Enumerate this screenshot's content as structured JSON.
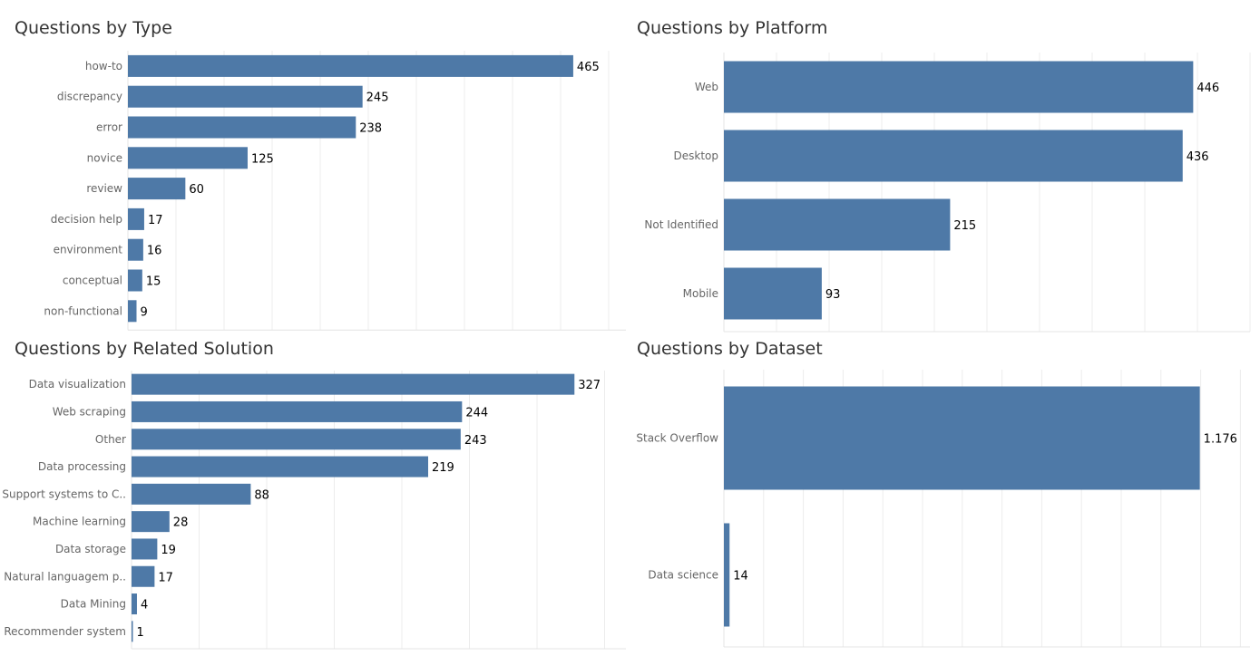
{
  "colors": {
    "bar": "#4e79a7"
  },
  "chart_data": [
    {
      "type": "bar",
      "orientation": "horizontal",
      "title": "Questions by Type",
      "categories": [
        "how-to",
        "discrepancy",
        "error",
        "novice",
        "review",
        "decision help",
        "environment",
        "conceptual",
        "non-functional"
      ],
      "values": [
        465,
        245,
        238,
        125,
        60,
        17,
        16,
        15,
        9
      ],
      "value_labels": [
        "465",
        "245",
        "238",
        "125",
        "60",
        "17",
        "16",
        "15",
        "9"
      ],
      "xlim": [
        0,
        520
      ],
      "grid": true
    },
    {
      "type": "bar",
      "orientation": "horizontal",
      "title": "Questions by Platform",
      "categories": [
        "Web",
        "Desktop",
        "Not Identified",
        "Mobile"
      ],
      "values": [
        446,
        436,
        215,
        93
      ],
      "value_labels": [
        "446",
        "436",
        "215",
        "93"
      ],
      "xlim": [
        0,
        500
      ],
      "grid": true
    },
    {
      "type": "bar",
      "orientation": "horizontal",
      "title": "Questions by Related Solution",
      "categories": [
        "Data visualization",
        "Web scraping",
        "Other",
        "Data processing",
        "Support systems to C..",
        "Machine learning",
        "Data storage",
        "Natural languagem p..",
        "Data Mining",
        "Recommender system"
      ],
      "values": [
        327,
        244,
        243,
        219,
        88,
        28,
        19,
        17,
        4,
        1
      ],
      "value_labels": [
        "327",
        "244",
        "243",
        "219",
        "88",
        "28",
        "19",
        "17",
        "4",
        "1"
      ],
      "xlim": [
        0,
        365
      ],
      "grid": true
    },
    {
      "type": "bar",
      "orientation": "horizontal",
      "title": "Questions by Dataset",
      "categories": [
        "Stack Overflow",
        "Data science"
      ],
      "values": [
        1176,
        14
      ],
      "value_labels": [
        "1.176",
        "14"
      ],
      "xlim": [
        0,
        1300
      ],
      "grid": true
    }
  ]
}
